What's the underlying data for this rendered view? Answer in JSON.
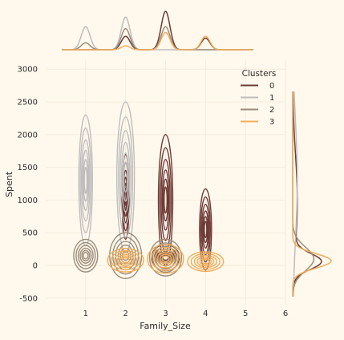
{
  "chart_data": {
    "type": "kde-jointplot",
    "xlabel": "Family_Size",
    "ylabel": "Spent",
    "xlim": [
      0,
      6
    ],
    "ylim": [
      -600,
      3150
    ],
    "x_ticks": [
      1,
      2,
      3,
      4,
      5,
      6
    ],
    "y_ticks": [
      -500,
      0,
      500,
      1000,
      1500,
      2000,
      2500,
      3000
    ],
    "grid": true,
    "legend": {
      "title": "Clusters",
      "position": "top-right"
    },
    "series": [
      {
        "name": "0",
        "color": "#6E3A36",
        "groups": [
          {
            "x": 2.0,
            "y": 1050,
            "rx": 0.09,
            "ry": 650
          },
          {
            "x": 3.0,
            "y": 1000,
            "rx": 0.18,
            "ry": 1000
          },
          {
            "x": 4.0,
            "y": 550,
            "rx": 0.15,
            "ry": 620
          },
          {
            "x": 3.0,
            "y": 120,
            "rx": 0.35,
            "ry": 200
          }
        ],
        "marginal_x_peaks": [
          {
            "x": 2,
            "h": 0.35
          },
          {
            "x": 3,
            "h": 1.0
          },
          {
            "x": 4,
            "h": 0.3
          }
        ]
      },
      {
        "name": "1",
        "color": "#BDBDBD",
        "groups": [
          {
            "x": 1.0,
            "y": 1300,
            "rx": 0.17,
            "ry": 1000
          },
          {
            "x": 2.0,
            "y": 1350,
            "rx": 0.22,
            "ry": 1150
          }
        ],
        "marginal_x_peaks": [
          {
            "x": 1,
            "h": 0.6
          },
          {
            "x": 2,
            "h": 0.85
          }
        ]
      },
      {
        "name": "2",
        "color": "#9C8C79",
        "groups": [
          {
            "x": 1.0,
            "y": 150,
            "rx": 0.3,
            "ry": 250
          },
          {
            "x": 2.0,
            "y": 150,
            "rx": 0.4,
            "ry": 350
          },
          {
            "x": 3.0,
            "y": 120,
            "rx": 0.4,
            "ry": 280
          }
        ],
        "marginal_x_peaks": [
          {
            "x": 1,
            "h": 0.18
          },
          {
            "x": 2,
            "h": 0.55
          },
          {
            "x": 3,
            "h": 0.6
          }
        ]
      },
      {
        "name": "3",
        "color": "#F0AE5C",
        "groups": [
          {
            "x": 2.0,
            "y": 80,
            "rx": 0.45,
            "ry": 180
          },
          {
            "x": 3.0,
            "y": 100,
            "rx": 0.45,
            "ry": 220
          },
          {
            "x": 4.0,
            "y": 60,
            "rx": 0.45,
            "ry": 150
          }
        ],
        "marginal_x_peaks": [
          {
            "x": 2,
            "h": 0.1
          },
          {
            "x": 3,
            "h": 0.45
          },
          {
            "x": 4,
            "h": 0.35
          }
        ]
      }
    ]
  }
}
